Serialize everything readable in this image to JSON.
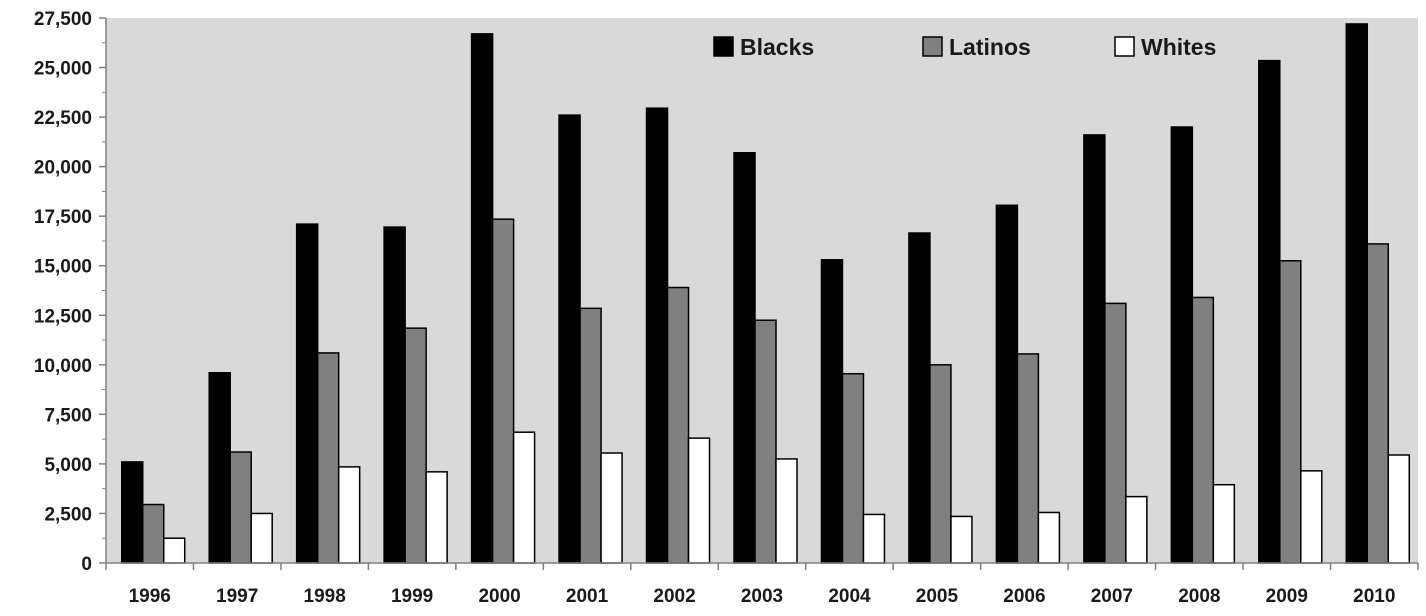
{
  "chart_data": {
    "type": "bar",
    "categories": [
      "1996",
      "1997",
      "1998",
      "1999",
      "2000",
      "2001",
      "2002",
      "2003",
      "2004",
      "2005",
      "2006",
      "2007",
      "2008",
      "2009",
      "2010"
    ],
    "series": [
      {
        "name": "Blacks",
        "color": "#000000",
        "values": [
          5100,
          9600,
          17100,
          16950,
          26700,
          22600,
          22950,
          20700,
          15300,
          16650,
          18050,
          21600,
          22000,
          25350,
          27200
        ]
      },
      {
        "name": "Latinos",
        "color": "#808080",
        "values": [
          2950,
          5600,
          10600,
          11850,
          17350,
          12850,
          13900,
          12250,
          9550,
          10000,
          10550,
          13100,
          13400,
          15250,
          16100
        ]
      },
      {
        "name": "Whites",
        "color": "#ffffff",
        "values": [
          1250,
          2500,
          4850,
          4600,
          6600,
          5550,
          6300,
          5250,
          2450,
          2350,
          2550,
          3350,
          3950,
          4650,
          5450
        ]
      }
    ],
    "yticks": [
      "0",
      "2,500",
      "5,000",
      "7,500",
      "10,000",
      "12,500",
      "15,000",
      "17,500",
      "20,000",
      "22,500",
      "25,000",
      "27,500"
    ],
    "ylim": [
      0,
      27500
    ],
    "ytick_step": 2500,
    "legend_position": "top-right",
    "plot_background": "#d9d9d9",
    "grid": false
  }
}
